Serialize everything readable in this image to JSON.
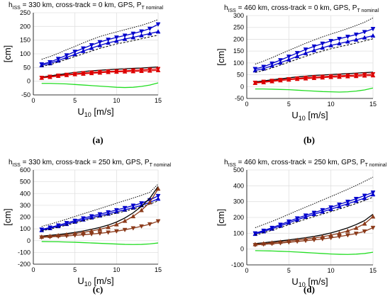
{
  "chart_data": [
    {
      "type": "line",
      "title": "h_ISS = 330 km, cross-track = 0 km, GPS, P_T nominal",
      "title_parts": {
        "h": "h",
        "h_sub": "ISS",
        "middle": " = 330 km, cross-track = 0 km, GPS, P",
        "p_sub": "T nominal"
      },
      "xlabel": "U10 [m/s]",
      "xlabel_parts": {
        "main": "U",
        "sub": "10",
        "unit": " [m/s]"
      },
      "ylabel": "[cm]",
      "xlim": [
        0,
        15
      ],
      "ylim": [
        -50,
        250
      ],
      "xticks": [
        0,
        5,
        10,
        15
      ],
      "yticks": [
        -50,
        0,
        50,
        100,
        150,
        200,
        250
      ],
      "caption": "(a)",
      "x": [
        1,
        2,
        3,
        4,
        5,
        6,
        7,
        8,
        9,
        10,
        11,
        12,
        13,
        14,
        15
      ],
      "series": [
        {
          "color": "#000000",
          "style": "dotted",
          "marker": "none",
          "values": [
            80,
            90,
            102,
            115,
            127,
            140,
            152,
            163,
            172,
            180,
            188,
            196,
            204,
            214,
            225
          ]
        },
        {
          "color": "#0000cc",
          "style": "solid",
          "marker": "tri-down",
          "values": [
            62,
            70,
            82,
            95,
            108,
            120,
            132,
            143,
            152,
            160,
            167,
            174,
            182,
            192,
            208
          ]
        },
        {
          "color": "#0000cc",
          "style": "solid",
          "marker": "tri-up",
          "values": [
            58,
            65,
            75,
            87,
            98,
            110,
            121,
            131,
            140,
            147,
            154,
            160,
            167,
            174,
            181
          ]
        },
        {
          "color": "#000000",
          "style": "dashed",
          "marker": "none",
          "values": [
            54,
            60,
            70,
            80,
            90,
            100,
            110,
            120,
            128,
            136,
            142,
            148,
            155,
            162,
            168
          ]
        },
        {
          "color": "#000000",
          "style": "solid",
          "marker": "none",
          "values": [
            15,
            19,
            24,
            28,
            32,
            35,
            38,
            40,
            42,
            44,
            45,
            47,
            48,
            50,
            52
          ]
        },
        {
          "color": "#dd0000",
          "style": "solid",
          "marker": "tri-down",
          "values": [
            13,
            17,
            21,
            24,
            27,
            30,
            32,
            34,
            36,
            37,
            38,
            40,
            41,
            43,
            45
          ]
        },
        {
          "color": "#dd0000",
          "style": "solid",
          "marker": "tri-up",
          "values": [
            12,
            15,
            19,
            22,
            25,
            27,
            29,
            31,
            33,
            34,
            35,
            36,
            37,
            38,
            40
          ]
        },
        {
          "color": "#22dd22",
          "style": "solid",
          "marker": "none",
          "values": [
            -8,
            -8,
            -9,
            -10,
            -12,
            -14,
            -16,
            -18,
            -20,
            -22,
            -23,
            -22,
            -19,
            -14,
            -6
          ]
        }
      ]
    },
    {
      "type": "line",
      "title": "h_ISS = 460 km, cross-track = 0 km, GPS, P_T nominal",
      "title_parts": {
        "h": "h",
        "h_sub": "ISS",
        "middle": " = 460 km, cross-track = 0 km, GPS, P",
        "p_sub": "T nominal"
      },
      "xlabel": "U10 [m/s]",
      "xlabel_parts": {
        "main": "U",
        "sub": "10",
        "unit": " [m/s]"
      },
      "ylabel": "[cm]",
      "xlim": [
        0,
        15
      ],
      "ylim": [
        -50,
        300
      ],
      "xticks": [
        0,
        5,
        10,
        15
      ],
      "yticks": [
        -50,
        0,
        50,
        100,
        150,
        200,
        250,
        300
      ],
      "caption": "(b)",
      "x": [
        1,
        2,
        3,
        4,
        5,
        6,
        7,
        8,
        9,
        10,
        11,
        12,
        13,
        14,
        15
      ],
      "series": [
        {
          "color": "#000000",
          "style": "dotted",
          "marker": "none",
          "values": [
            95,
            108,
            122,
            138,
            153,
            168,
            183,
            197,
            210,
            222,
            233,
            245,
            258,
            272,
            290
          ]
        },
        {
          "color": "#0000cc",
          "style": "solid",
          "marker": "tri-down",
          "values": [
            75,
            84,
            98,
            112,
            127,
            142,
            157,
            170,
            182,
            193,
            202,
            211,
            220,
            231,
            244
          ]
        },
        {
          "color": "#0000cc",
          "style": "solid",
          "marker": "tri-up",
          "values": [
            68,
            76,
            88,
            101,
            114,
            128,
            141,
            153,
            164,
            174,
            182,
            190,
            198,
            207,
            215
          ]
        },
        {
          "color": "#000000",
          "style": "dashed",
          "marker": "none",
          "values": [
            60,
            68,
            79,
            91,
            103,
            116,
            128,
            140,
            150,
            160,
            168,
            176,
            184,
            193,
            202
          ]
        },
        {
          "color": "#000000",
          "style": "solid",
          "marker": "none",
          "values": [
            20,
            24,
            29,
            33,
            37,
            41,
            44,
            47,
            49,
            51,
            53,
            55,
            57,
            59,
            61
          ]
        },
        {
          "color": "#dd0000",
          "style": "solid",
          "marker": "tri-down",
          "values": [
            17,
            21,
            25,
            29,
            32,
            35,
            38,
            40,
            42,
            44,
            46,
            47,
            49,
            51,
            53
          ]
        },
        {
          "color": "#dd0000",
          "style": "solid",
          "marker": "tri-up",
          "values": [
            15,
            18,
            22,
            26,
            29,
            32,
            34,
            36,
            38,
            40,
            41,
            43,
            44,
            46,
            47
          ]
        },
        {
          "color": "#22dd22",
          "style": "solid",
          "marker": "none",
          "values": [
            -10,
            -10,
            -11,
            -12,
            -13,
            -15,
            -17,
            -19,
            -21,
            -22,
            -23,
            -22,
            -19,
            -14,
            -6
          ]
        }
      ]
    },
    {
      "type": "line",
      "title": "h_ISS = 330 km, cross-track = 250 km, GPS, P_T nominal",
      "title_parts": {
        "h": "h",
        "h_sub": "ISS",
        "middle": " = 330 km, cross-track = 250 km, GPS, P",
        "p_sub": "T nominal"
      },
      "xlabel": "U10 [m/s]",
      "xlabel_parts": {
        "main": "U",
        "sub": "10",
        "unit": " [m/s]"
      },
      "ylabel": "[cm]",
      "xlim": [
        0,
        15
      ],
      "ylim": [
        -200,
        600
      ],
      "xticks": [
        0,
        5,
        10,
        15
      ],
      "yticks": [
        -200,
        -100,
        0,
        100,
        200,
        300,
        400,
        500,
        600
      ],
      "caption": "(c)",
      "x": [
        1,
        2,
        3,
        4,
        5,
        6,
        7,
        8,
        9,
        10,
        11,
        12,
        13,
        14,
        15
      ],
      "series": [
        {
          "color": "#000000",
          "style": "dotted",
          "marker": "none",
          "values": [
            120,
            140,
            160,
            182,
            205,
            228,
            250,
            272,
            295,
            318,
            340,
            362,
            385,
            410,
            480
          ]
        },
        {
          "color": "#0000cc",
          "style": "solid",
          "marker": "tri-down",
          "values": [
            95,
            112,
            130,
            150,
            170,
            190,
            208,
            225,
            242,
            260,
            278,
            298,
            318,
            345,
            380
          ]
        },
        {
          "color": "#0000cc",
          "style": "solid",
          "marker": "tri-up",
          "values": [
            88,
            105,
            122,
            140,
            160,
            178,
            196,
            212,
            228,
            245,
            262,
            280,
            300,
            325,
            355
          ]
        },
        {
          "color": "#000000",
          "style": "dashed",
          "marker": "none",
          "values": [
            82,
            98,
            114,
            132,
            150,
            168,
            185,
            201,
            217,
            233,
            250,
            268,
            287,
            310,
            338
          ]
        },
        {
          "color": "#000000",
          "style": "solid",
          "marker": "none",
          "values": [
            38,
            45,
            52,
            60,
            70,
            82,
            96,
            112,
            132,
            158,
            192,
            236,
            292,
            360,
            460
          ]
        },
        {
          "color": "#8b3a1a",
          "style": "solid",
          "marker": "tri-up",
          "values": [
            32,
            38,
            44,
            51,
            60,
            70,
            82,
            96,
            114,
            137,
            167,
            206,
            258,
            325,
            440
          ]
        },
        {
          "color": "#8b3a1a",
          "style": "solid",
          "marker": "tri-down",
          "values": [
            28,
            32,
            36,
            40,
            45,
            50,
            56,
            62,
            70,
            80,
            92,
            106,
            122,
            140,
            165
          ]
        },
        {
          "color": "#22dd22",
          "style": "solid",
          "marker": "none",
          "values": [
            -8,
            -9,
            -10,
            -12,
            -14,
            -17,
            -20,
            -23,
            -26,
            -29,
            -32,
            -33,
            -32,
            -28,
            -20
          ]
        }
      ]
    },
    {
      "type": "line",
      "title": "h_ISS = 460 km, cross-track = 250 km, GPS, P_T nominal",
      "title_parts": {
        "h": "h",
        "h_sub": "ISS",
        "middle": " = 460 km, cross-track = 250 km, GPS, P",
        "p_sub": "T nominal"
      },
      "xlabel": "U10 [m/s]",
      "xlabel_parts": {
        "main": "U",
        "sub": "10",
        "unit": " [m/s]"
      },
      "ylabel": "[cm]",
      "xlim": [
        0,
        15
      ],
      "ylim": [
        -100,
        500
      ],
      "xticks": [
        0,
        5,
        10,
        15
      ],
      "yticks": [
        -100,
        0,
        100,
        200,
        300,
        400,
        500
      ],
      "caption": "(d)",
      "x": [
        1,
        2,
        3,
        4,
        5,
        6,
        7,
        8,
        9,
        10,
        11,
        12,
        13,
        14,
        15
      ],
      "series": [
        {
          "color": "#000000",
          "style": "dotted",
          "marker": "none",
          "values": [
            135,
            155,
            175,
            197,
            220,
            243,
            265,
            287,
            310,
            332,
            355,
            378,
            402,
            428,
            455
          ]
        },
        {
          "color": "#0000cc",
          "style": "solid",
          "marker": "tri-down",
          "values": [
            100,
            117,
            135,
            155,
            175,
            195,
            213,
            230,
            247,
            264,
            282,
            300,
            318,
            338,
            358
          ]
        },
        {
          "color": "#0000cc",
          "style": "solid",
          "marker": "tri-up",
          "values": [
            95,
            111,
            128,
            147,
            166,
            185,
            203,
            220,
            236,
            252,
            269,
            286,
            304,
            322,
            345
          ]
        },
        {
          "color": "#000000",
          "style": "dashed",
          "marker": "none",
          "values": [
            88,
            103,
            119,
            136,
            154,
            172,
            189,
            205,
            221,
            237,
            253,
            270,
            288,
            307,
            328
          ]
        },
        {
          "color": "#000000",
          "style": "solid",
          "marker": "none",
          "values": [
            35,
            40,
            46,
            52,
            58,
            65,
            72,
            80,
            90,
            102,
            117,
            134,
            155,
            180,
            220
          ]
        },
        {
          "color": "#8b3a1a",
          "style": "solid",
          "marker": "tri-up",
          "values": [
            30,
            35,
            40,
            45,
            51,
            57,
            63,
            70,
            78,
            88,
            100,
            115,
            133,
            160,
            205
          ]
        },
        {
          "color": "#8b3a1a",
          "style": "solid",
          "marker": "tri-down",
          "values": [
            26,
            30,
            34,
            38,
            43,
            48,
            53,
            58,
            64,
            71,
            79,
            88,
            98,
            112,
            135
          ]
        },
        {
          "color": "#22dd22",
          "style": "solid",
          "marker": "none",
          "values": [
            -10,
            -11,
            -12,
            -14,
            -16,
            -19,
            -22,
            -25,
            -28,
            -31,
            -33,
            -34,
            -32,
            -28,
            -20
          ]
        }
      ]
    }
  ]
}
